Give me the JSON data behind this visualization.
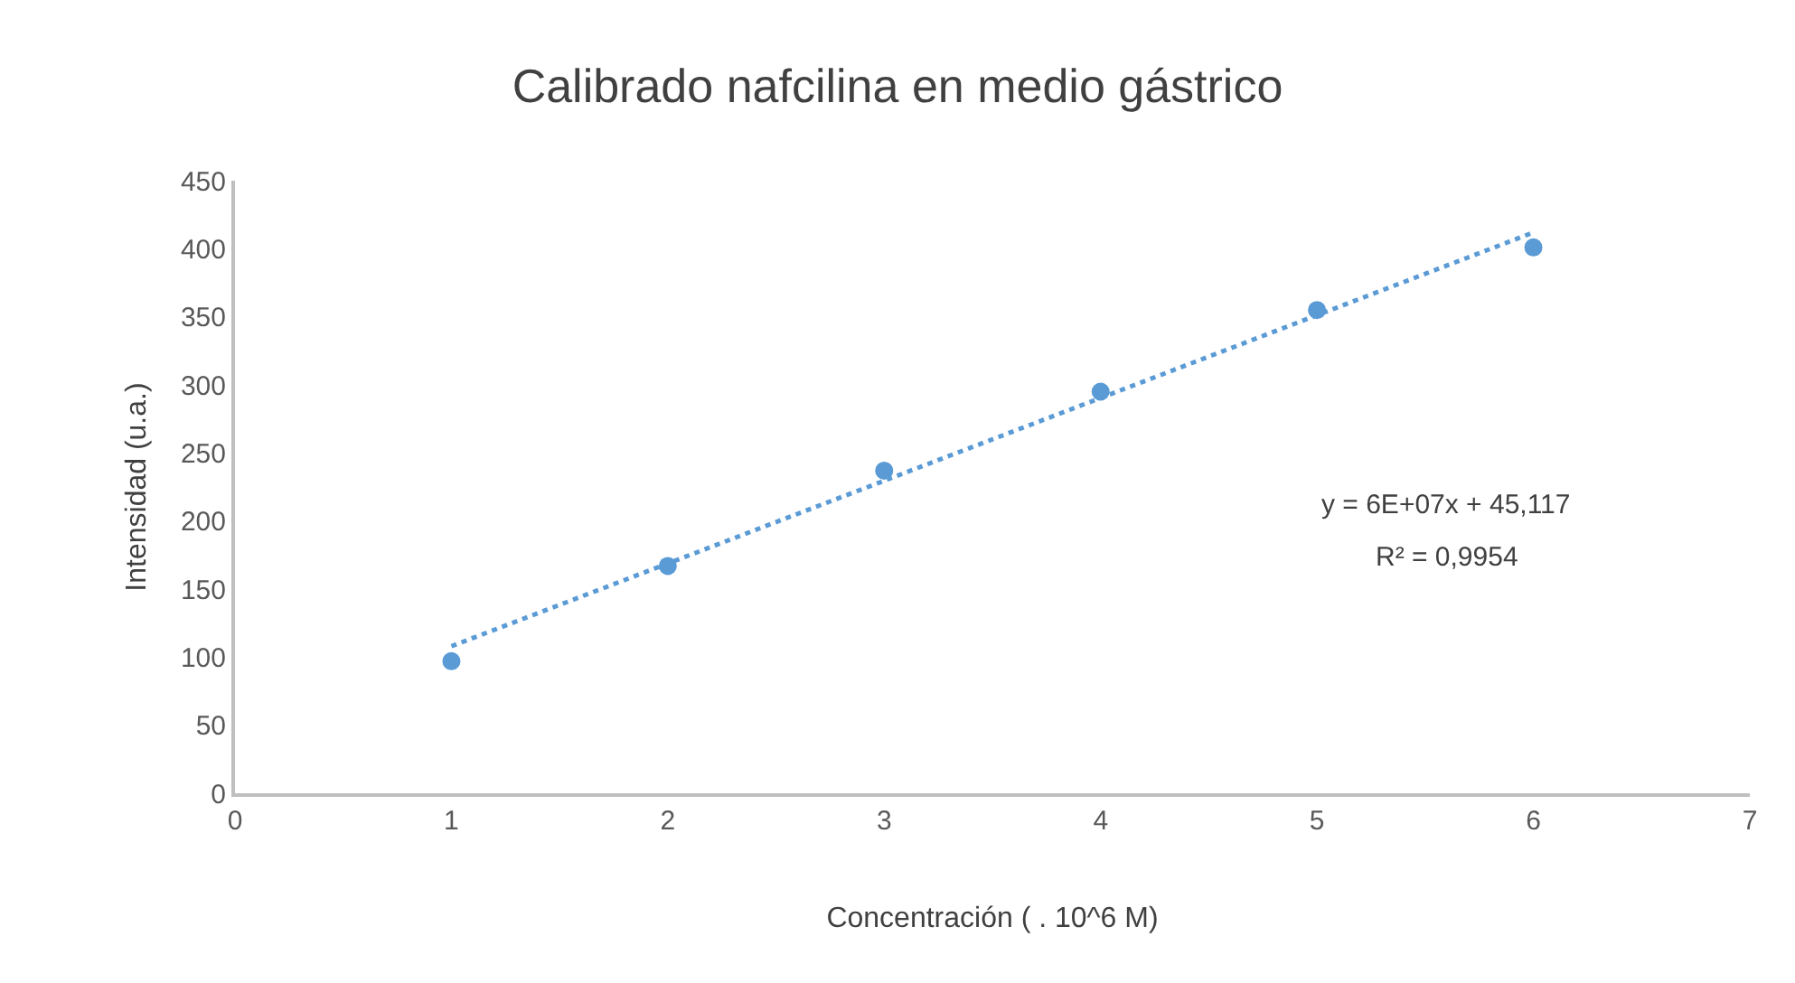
{
  "chart_data": {
    "type": "scatter",
    "title": "Calibrado nafcilina en medio gástrico",
    "xlabel": "Concentración ( . 10^6 M)",
    "ylabel": "Intensidad (u.a.)",
    "x": [
      1,
      2,
      3,
      4,
      5,
      6
    ],
    "series": [
      {
        "color": "#5b9bd5",
        "values": [
          97,
          167,
          237,
          295,
          355,
          401
        ],
        "marker": "circle"
      },
      {
        "type": "line",
        "color": "#5b9bd5",
        "x": [
          1,
          6
        ],
        "values": [
          108,
          412
        ],
        "marker": "none",
        "line_style": "dotted"
      }
    ],
    "xlim": [
      0,
      7
    ],
    "xticks": [
      0,
      1,
      2,
      3,
      4,
      5,
      6,
      7
    ],
    "ylim": [
      0,
      450
    ],
    "yticks": [
      0,
      50,
      100,
      150,
      200,
      250,
      300,
      350,
      400,
      450
    ],
    "grid": false,
    "annotations": [
      "y = 6E+07x + 45,117",
      "R² = 0,9954"
    ]
  }
}
